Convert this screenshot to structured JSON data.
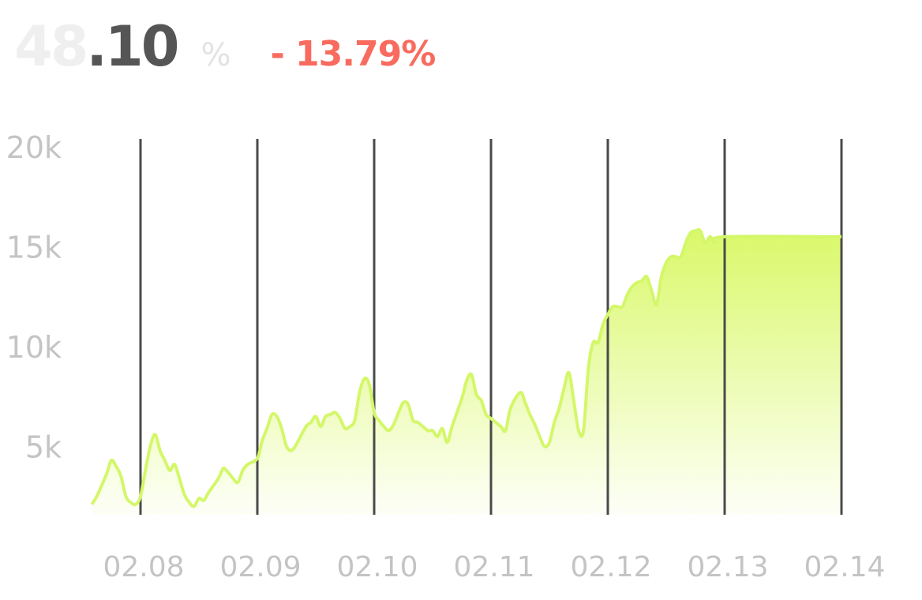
{
  "header": {
    "value_int": "48",
    "value_dec": ".10",
    "unit": "%",
    "change": "- 13.79%"
  },
  "colors": {
    "line": "#d4f76a",
    "fill": "#d8f862",
    "gridline": "#4a4a4a",
    "change": "#f86b5e",
    "tick": "#c4c4c4"
  },
  "chart_data": {
    "type": "area",
    "title": "",
    "xlabel": "",
    "ylabel": "",
    "x_ticks": [
      "02.08",
      "02.09",
      "02.10",
      "02.11",
      "02.12",
      "02.13",
      "02.14"
    ],
    "y_ticks": [
      "20k",
      "15k",
      "10k",
      "5k"
    ],
    "y_tick_values": [
      20000,
      15000,
      10000,
      5000
    ],
    "xlim": [
      "02.07 14:00",
      "02.14"
    ],
    "ylim": [
      0,
      20000
    ],
    "grid": "vertical",
    "series": [
      {
        "values": [
          [
            "02.07 14:00",
            2100
          ],
          [
            "02.07 15:00",
            2500
          ],
          [
            "02.07 17:00",
            3600
          ],
          [
            "02.07 18:00",
            4300
          ],
          [
            "02.07 19:00",
            4000
          ],
          [
            "02.07 20:00",
            3500
          ],
          [
            "02.07 21:00",
            2500
          ],
          [
            "02.07 22:00",
            2200
          ],
          [
            "02.07 23:00",
            2100
          ],
          [
            "02.08 00:00",
            2500
          ],
          [
            "02.08 01:00",
            3800
          ],
          [
            "02.08 02:00",
            5000
          ],
          [
            "02.08 03:00",
            5600
          ],
          [
            "02.08 04:00",
            4800
          ],
          [
            "02.08 05:00",
            4300
          ],
          [
            "02.08 06:00",
            3800
          ],
          [
            "02.08 07:00",
            4100
          ],
          [
            "02.08 08:00",
            3400
          ],
          [
            "02.08 09:00",
            2600
          ],
          [
            "02.08 10:00",
            2200
          ],
          [
            "02.08 11:00",
            2000
          ],
          [
            "02.08 12:00",
            2400
          ],
          [
            "02.08 13:00",
            2300
          ],
          [
            "02.08 14:00",
            2700
          ],
          [
            "02.08 16:00",
            3400
          ],
          [
            "02.08 17:00",
            3900
          ],
          [
            "02.08 18:00",
            3700
          ],
          [
            "02.08 19:00",
            3400
          ],
          [
            "02.08 20:00",
            3200
          ],
          [
            "02.08 21:00",
            3800
          ],
          [
            "02.08 22:00",
            4100
          ],
          [
            "02.09 00:00",
            4400
          ],
          [
            "02.09 01:00",
            5300
          ],
          [
            "02.09 02:00",
            5900
          ],
          [
            "02.09 03:00",
            6600
          ],
          [
            "02.09 04:00",
            6500
          ],
          [
            "02.09 05:00",
            5900
          ],
          [
            "02.09 06:00",
            5000
          ],
          [
            "02.09 07:00",
            4800
          ],
          [
            "02.09 08:00",
            5100
          ],
          [
            "02.09 10:00",
            6000
          ],
          [
            "02.09 11:00",
            6200
          ],
          [
            "02.09 12:00",
            6500
          ],
          [
            "02.09 13:00",
            6000
          ],
          [
            "02.09 14:00",
            6500
          ],
          [
            "02.09 15:00",
            6600
          ],
          [
            "02.09 16:00",
            6700
          ],
          [
            "02.09 17:00",
            6400
          ],
          [
            "02.09 18:00",
            5900
          ],
          [
            "02.09 19:00",
            6000
          ],
          [
            "02.09 20:00",
            6300
          ],
          [
            "02.09 21:00",
            7700
          ],
          [
            "02.09 22:00",
            8400
          ],
          [
            "02.09 23:00",
            8100
          ],
          [
            "02.10 00:00",
            6700
          ],
          [
            "02.10 01:00",
            6300
          ],
          [
            "02.10 02:00",
            6000
          ],
          [
            "02.10 03:00",
            5800
          ],
          [
            "02.10 04:00",
            6100
          ],
          [
            "02.10 05:00",
            6700
          ],
          [
            "02.10 06:00",
            7200
          ],
          [
            "02.10 07:00",
            7100
          ],
          [
            "02.10 08:00",
            6300
          ],
          [
            "02.10 09:00",
            6200
          ],
          [
            "02.10 11:00",
            5800
          ],
          [
            "02.10 12:00",
            5800
          ],
          [
            "02.10 13:00",
            5500
          ],
          [
            "02.10 14:00",
            5900
          ],
          [
            "02.10 15:00",
            5200
          ],
          [
            "02.10 16:00",
            6000
          ],
          [
            "02.10 18:00",
            7400
          ],
          [
            "02.10 19:00",
            8300
          ],
          [
            "02.10 20:00",
            8600
          ],
          [
            "02.10 21:00",
            7600
          ],
          [
            "02.10 22:00",
            7300
          ],
          [
            "02.10 23:00",
            6600
          ],
          [
            "02.11 00:00",
            6400
          ],
          [
            "02.11 02:00",
            6000
          ],
          [
            "02.11 03:00",
            5800
          ],
          [
            "02.11 04:00",
            6900
          ],
          [
            "02.11 06:00",
            7700
          ],
          [
            "02.11 07:00",
            7200
          ],
          [
            "02.11 08:00",
            6600
          ],
          [
            "02.11 09:00",
            6100
          ],
          [
            "02.11 10:00",
            5500
          ],
          [
            "02.11 11:00",
            5000
          ],
          [
            "02.11 12:00",
            5200
          ],
          [
            "02.11 13:00",
            6200
          ],
          [
            "02.11 14:00",
            6900
          ],
          [
            "02.11 15:00",
            7900
          ],
          [
            "02.11 16:00",
            8700
          ],
          [
            "02.11 17:00",
            7300
          ],
          [
            "02.11 18:00",
            5800
          ],
          [
            "02.11 19:00",
            5800
          ],
          [
            "02.11 20:00",
            8900
          ],
          [
            "02.11 21:00",
            10200
          ],
          [
            "02.11 22:00",
            10200
          ],
          [
            "02.11 23:00",
            11100
          ],
          [
            "02.12 00:00",
            11600
          ],
          [
            "02.12 01:00",
            12000
          ],
          [
            "02.12 02:00",
            12000
          ],
          [
            "02.12 03:00",
            12000
          ],
          [
            "02.12 04:00",
            12600
          ],
          [
            "02.12 05:00",
            13000
          ],
          [
            "02.12 06:00",
            13200
          ],
          [
            "02.12 07:00",
            13300
          ],
          [
            "02.12 08:00",
            13500
          ],
          [
            "02.12 09:00",
            12800
          ],
          [
            "02.12 10:00",
            12100
          ],
          [
            "02.12 11:00",
            13500
          ],
          [
            "02.12 12:00",
            14200
          ],
          [
            "02.12 13:00",
            14500
          ],
          [
            "02.12 14:00",
            14500
          ],
          [
            "02.12 15:00",
            14500
          ],
          [
            "02.12 16:00",
            15200
          ],
          [
            "02.12 17:00",
            15700
          ],
          [
            "02.12 18:00",
            15800
          ],
          [
            "02.12 19:00",
            15800
          ],
          [
            "02.12 20:00",
            15200
          ],
          [
            "02.12 21:00",
            15500
          ],
          [
            "02.12 22:00",
            15200
          ],
          [
            "02.13 00:00",
            15500
          ],
          [
            "02.14",
            15500
          ]
        ]
      }
    ]
  }
}
